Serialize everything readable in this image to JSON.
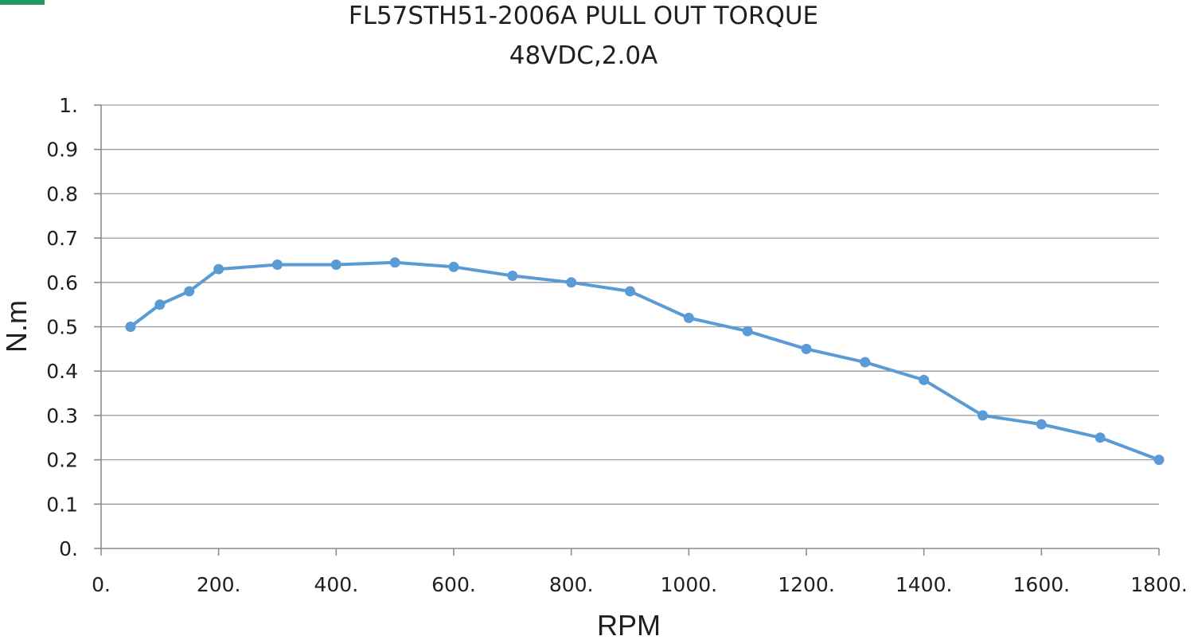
{
  "chart_data": {
    "type": "line",
    "title": "FL57STH51-2006A PULL OUT TORQUE",
    "subtitle": "48VDC,2.0A",
    "xlabel": "RPM",
    "ylabel": "N.m",
    "xlim": [
      0,
      1800
    ],
    "ylim": [
      0,
      1
    ],
    "xticks": [
      0,
      200,
      400,
      600,
      800,
      1000,
      1200,
      1400,
      1600,
      1800
    ],
    "xtick_labels": [
      "0.",
      "200.",
      "400.",
      "600.",
      "800.",
      "1000.",
      "1200.",
      "1400.",
      "1600.",
      "1800."
    ],
    "yticks": [
      0,
      0.1,
      0.2,
      0.3,
      0.4,
      0.5,
      0.6,
      0.7,
      0.8,
      0.9,
      1
    ],
    "ytick_labels": [
      "0.",
      "0.1",
      "0.2",
      "0.3",
      "0.4",
      "0.5",
      "0.6",
      "0.7",
      "0.8",
      "0.9",
      "1."
    ],
    "grid": true,
    "series": [
      {
        "color": "#5b9bd5",
        "x": [
          50,
          100,
          150,
          200,
          300,
          400,
          500,
          600,
          700,
          800,
          900,
          1000,
          1100,
          1200,
          1300,
          1400,
          1500,
          1600,
          1700,
          1800
        ],
        "y": [
          0.5,
          0.55,
          0.58,
          0.63,
          0.64,
          0.64,
          0.645,
          0.635,
          0.615,
          0.6,
          0.58,
          0.52,
          0.49,
          0.45,
          0.42,
          0.38,
          0.3,
          0.28,
          0.25,
          0.2
        ]
      }
    ]
  }
}
